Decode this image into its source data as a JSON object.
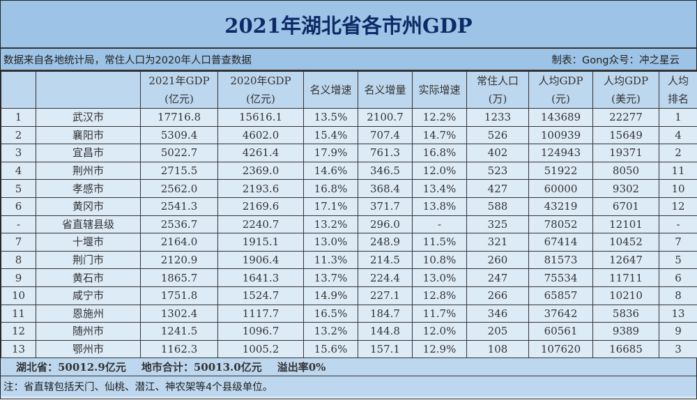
{
  "title": "2021年湖北省各市州GDP",
  "source_note": "数据来自各地统计局，常住人口为2020年人口普查数据",
  "credit": "制表：Gong众号：冲之星云",
  "headers": [
    {
      "line1": "",
      "line2": ""
    },
    {
      "line1": "",
      "line2": ""
    },
    {
      "line1": "2021年GDP",
      "line2": "(亿元)"
    },
    {
      "line1": "2020年GDP",
      "line2": "(亿元)"
    },
    {
      "line1": "名义增速",
      "line2": ""
    },
    {
      "line1": "名义增量",
      "line2": ""
    },
    {
      "line1": "实际增速",
      "line2": ""
    },
    {
      "line1": "常住人口",
      "line2": "(万)"
    },
    {
      "line1": "人均GDP",
      "line2": "(元)"
    },
    {
      "line1": "人均GDP",
      "line2": "(美元)"
    },
    {
      "line1": "人均",
      "line2": "排名"
    }
  ],
  "rows": [
    [
      "1",
      "武汉市",
      "17716.8",
      "15616.1",
      "13.5%",
      "2100.7",
      "12.2%",
      "1233",
      "143689",
      "22277",
      "1"
    ],
    [
      "2",
      "襄阳市",
      "5309.4",
      "4602.0",
      "15.4%",
      "707.4",
      "14.7%",
      "526",
      "100939",
      "15649",
      "4"
    ],
    [
      "3",
      "宜昌市",
      "5022.7",
      "4261.4",
      "17.9%",
      "761.3",
      "16.8%",
      "402",
      "124943",
      "19371",
      "2"
    ],
    [
      "4",
      "荆州市",
      "2715.5",
      "2369.0",
      "14.6%",
      "346.5",
      "12.0%",
      "523",
      "51922",
      "8050",
      "11"
    ],
    [
      "5",
      "孝感市",
      "2562.0",
      "2193.6",
      "16.8%",
      "368.4",
      "13.4%",
      "427",
      "60000",
      "9302",
      "10"
    ],
    [
      "6",
      "黄冈市",
      "2541.3",
      "2169.6",
      "17.1%",
      "371.7",
      "13.8%",
      "588",
      "43219",
      "6701",
      "12"
    ],
    [
      "-",
      "省直辖县级",
      "2536.7",
      "2240.7",
      "13.2%",
      "296.0",
      "-",
      "325",
      "78052",
      "12101",
      "-"
    ],
    [
      "7",
      "十堰市",
      "2164.0",
      "1915.1",
      "13.0%",
      "248.9",
      "11.5%",
      "321",
      "67414",
      "10452",
      "7"
    ],
    [
      "8",
      "荆门市",
      "2120.9",
      "1906.4",
      "11.3%",
      "214.5",
      "10.8%",
      "260",
      "81573",
      "12647",
      "5"
    ],
    [
      "9",
      "黄石市",
      "1865.7",
      "1641.3",
      "13.7%",
      "224.4",
      "13.0%",
      "247",
      "75534",
      "11711",
      "6"
    ],
    [
      "10",
      "咸宁市",
      "1751.8",
      "1524.7",
      "14.9%",
      "227.1",
      "12.8%",
      "266",
      "65857",
      "10210",
      "8"
    ],
    [
      "11",
      "恩施州",
      "1302.4",
      "1117.7",
      "16.5%",
      "184.7",
      "11.7%",
      "346",
      "37642",
      "5836",
      "13"
    ],
    [
      "12",
      "随州市",
      "1241.5",
      "1096.7",
      "13.2%",
      "144.8",
      "12.0%",
      "205",
      "60561",
      "9389",
      "9"
    ],
    [
      "13",
      "鄂州市",
      "1162.3",
      "1005.2",
      "15.6%",
      "157.1",
      "12.9%",
      "108",
      "107620",
      "16685",
      "3"
    ]
  ],
  "summary": {
    "province": "湖北省：50012.9亿元",
    "cities_total": "地市合计：50013.0亿元",
    "overflow": "溢出率0%"
  },
  "footnote": "注：省直辖包括天门、仙桃、潜江、神农架等4个县级单位。",
  "colors": {
    "title_bg": "#9dc3e6",
    "header_bg": "#bdd7ee",
    "row_bg": "#ddebf7",
    "title_text": "#0d2a66"
  }
}
